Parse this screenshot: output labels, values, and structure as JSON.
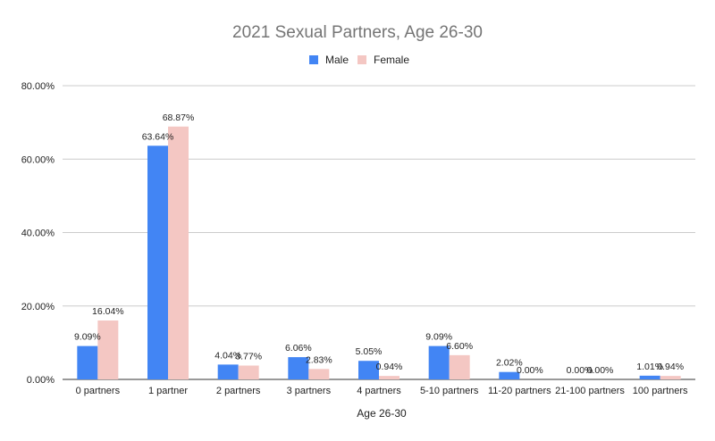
{
  "chart_data": {
    "type": "bar",
    "title": "2021 Sexual Partners, Age 26-30",
    "xlabel": "Age 26-30",
    "ylabel": "",
    "ylim": [
      0,
      80
    ],
    "yticks": [
      "0.00%",
      "20.00%",
      "40.00%",
      "60.00%",
      "80.00%"
    ],
    "grid": true,
    "legend_position": "top",
    "categories": [
      "0 partners",
      "1 partner",
      "2 partners",
      "3 partners",
      "4 partners",
      "5-10 partners",
      "11-20 partners",
      "21-100 partners",
      "100 partners"
    ],
    "series": [
      {
        "name": "Male",
        "color": "#4285f4",
        "values": [
          9.09,
          63.64,
          4.04,
          6.06,
          5.05,
          9.09,
          2.02,
          0.0,
          1.01
        ],
        "labels": [
          "9.09%",
          "63.64%",
          "4.04%",
          "6.06%",
          "5.05%",
          "9.09%",
          "2.02%",
          "0.00%",
          "1.01%"
        ]
      },
      {
        "name": "Female",
        "color": "#f4c7c3",
        "values": [
          16.04,
          68.87,
          3.77,
          2.83,
          0.94,
          6.6,
          0.0,
          0.0,
          0.94
        ],
        "labels": [
          "16.04%",
          "68.87%",
          "3.77%",
          "2.83%",
          "0.94%",
          "6.60%",
          "0.00%",
          "0.00%",
          "0.94%"
        ]
      }
    ]
  }
}
